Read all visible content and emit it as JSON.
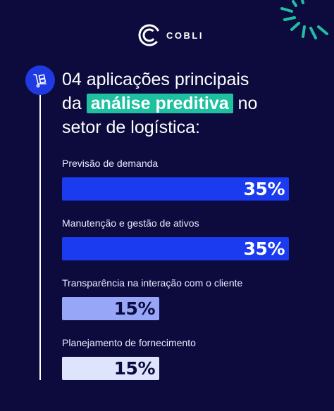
{
  "brand": {
    "name": "COBLI"
  },
  "heading": {
    "line1": "04 aplicações principais",
    "line2_pre": "da",
    "highlight": "análise preditiva",
    "line2_post": "no",
    "line3": "setor de logística:"
  },
  "colors": {
    "background": "#0d0b3e",
    "accent_teal": "#1ec0a0",
    "badge_blue": "#1e3ae0"
  },
  "icons": [
    "cobli-logo-icon",
    "hand-truck-icon",
    "rays-decoration-icon"
  ],
  "chart_data": {
    "type": "bar",
    "orientation": "horizontal",
    "categories": [
      "Previsão de demanda",
      "Manutenção e gestão de ativos",
      "Transparência na interação com o cliente",
      "Planejamento de fornecimento"
    ],
    "values": [
      35,
      35,
      15,
      15
    ],
    "value_labels": [
      "35%",
      "35%",
      "15%",
      "15%"
    ],
    "bar_colors": [
      "#1a3bf0",
      "#1a3bf0",
      "#97a6f7",
      "#dfe4fd"
    ],
    "value_text_colors": [
      "#ffffff",
      "#ffffff",
      "#0d0b3e",
      "#0d0b3e"
    ],
    "xlim": [
      0,
      35
    ]
  }
}
